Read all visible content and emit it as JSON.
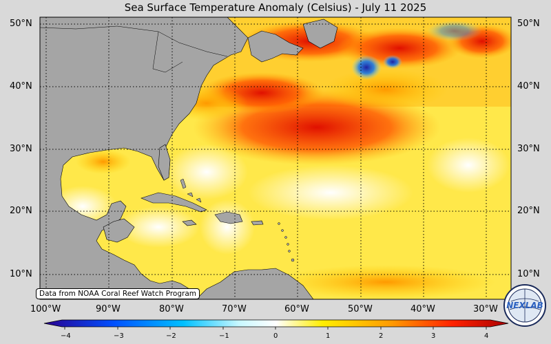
{
  "title": "Sea Surface Temperature Anomaly (Celsius) - July 11 2025",
  "credit": "Data from NOAA Coral Reef Watch Program",
  "lat_labels": [
    "50°N",
    "40°N",
    "30°N",
    "20°N",
    "10°N"
  ],
  "lon_labels": [
    "100°W",
    "90°W",
    "80°W",
    "70°W",
    "60°W",
    "50°W",
    "40°W",
    "30°W"
  ],
  "colorbar": {
    "ticks": [
      "−4",
      "−3",
      "−2",
      "−1",
      "0",
      "1",
      "2",
      "3",
      "4"
    ],
    "colors": [
      "#2a0090",
      "#0050ff",
      "#00b8ff",
      "#c8f8ff",
      "#ffffff",
      "#ffee00",
      "#ff9900",
      "#ff2200",
      "#aa0000"
    ]
  },
  "logo": {
    "text": "NEXLAB"
  }
}
